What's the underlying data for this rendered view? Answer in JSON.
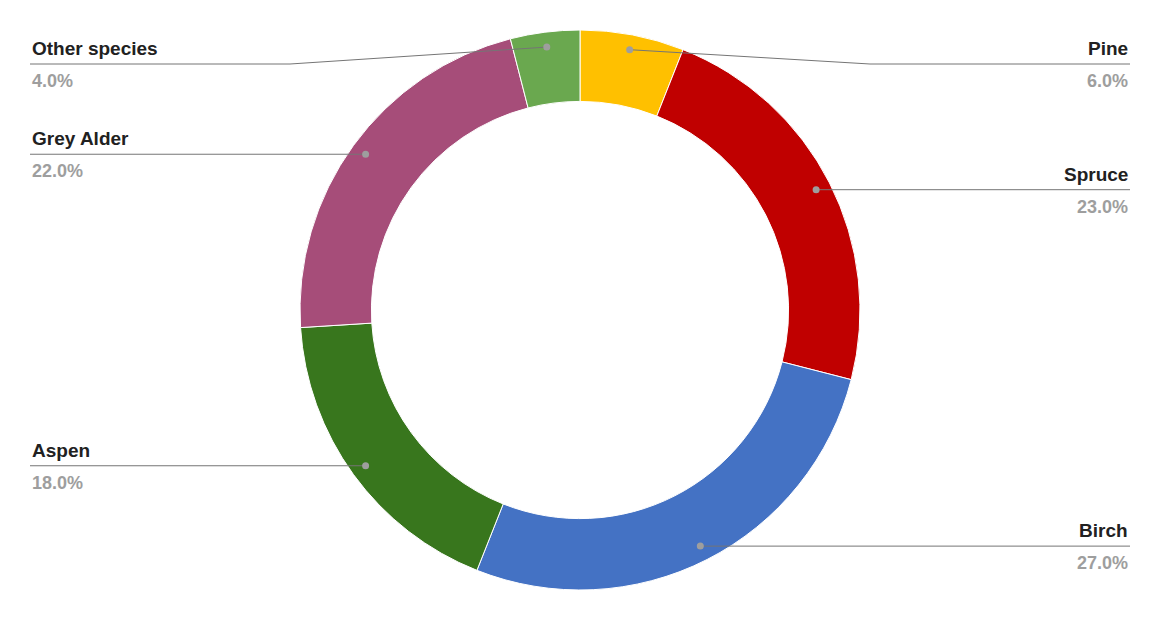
{
  "chart_data": {
    "type": "pie",
    "categories": [
      "Pine",
      "Spruce",
      "Birch",
      "Aspen",
      "Grey Alder",
      "Other species"
    ],
    "values": [
      6,
      23,
      27,
      18,
      22,
      4
    ],
    "value_labels": [
      "6.0%",
      "23.0%",
      "27.0%",
      "18.0%",
      "22.0%",
      "4.0%"
    ],
    "colors": [
      "#ffc000",
      "#c00000",
      "#4472c4",
      "#38761d",
      "#a64d79",
      "#6aa84f"
    ],
    "data_labels": true
  }
}
